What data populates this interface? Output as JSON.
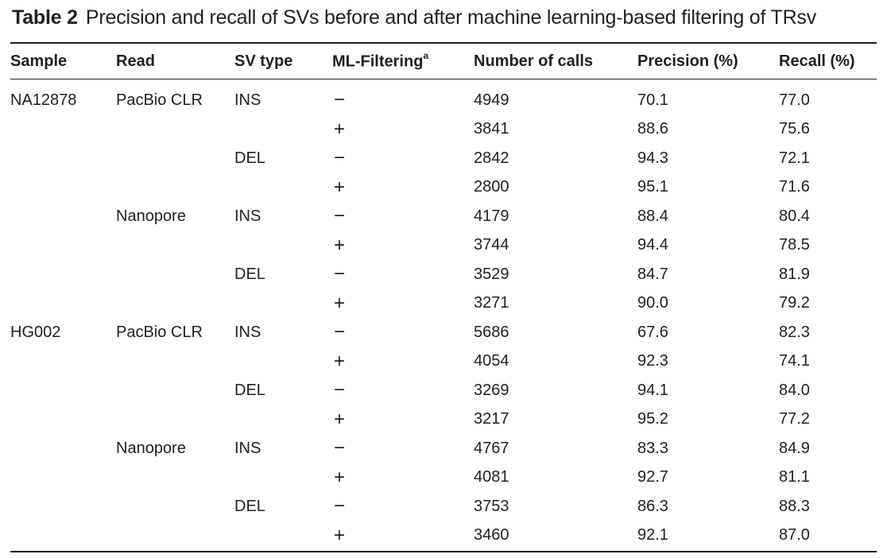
{
  "caption": {
    "label": "Table 2",
    "text": "Precision and recall of SVs before and after machine learning-based filtering of TRsv"
  },
  "table": {
    "headers": {
      "sample": "Sample",
      "read": "Read",
      "sv_type": "SV type",
      "ml_filtering": "ML-Filtering",
      "ml_filtering_footnote": "a",
      "number_of_calls": "Number of calls",
      "precision": "Precision (%)",
      "recall": "Recall (%)"
    },
    "rows": [
      {
        "sample": "NA12878",
        "read": "PacBio CLR",
        "sv_type": "INS",
        "ml": "−",
        "calls": "4949",
        "precision": "70.1",
        "recall": "77.0"
      },
      {
        "sample": "",
        "read": "",
        "sv_type": "",
        "ml": "+",
        "calls": "3841",
        "precision": "88.6",
        "recall": "75.6"
      },
      {
        "sample": "",
        "read": "",
        "sv_type": "DEL",
        "ml": "−",
        "calls": "2842",
        "precision": "94.3",
        "recall": "72.1"
      },
      {
        "sample": "",
        "read": "",
        "sv_type": "",
        "ml": "+",
        "calls": "2800",
        "precision": "95.1",
        "recall": "71.6"
      },
      {
        "sample": "",
        "read": "Nanopore",
        "sv_type": "INS",
        "ml": "−",
        "calls": "4179",
        "precision": "88.4",
        "recall": "80.4"
      },
      {
        "sample": "",
        "read": "",
        "sv_type": "",
        "ml": "+",
        "calls": "3744",
        "precision": "94.4",
        "recall": "78.5"
      },
      {
        "sample": "",
        "read": "",
        "sv_type": "DEL",
        "ml": "−",
        "calls": "3529",
        "precision": "84.7",
        "recall": "81.9"
      },
      {
        "sample": "",
        "read": "",
        "sv_type": "",
        "ml": "+",
        "calls": "3271",
        "precision": "90.0",
        "recall": "79.2"
      },
      {
        "sample": "HG002",
        "read": "PacBio CLR",
        "sv_type": "INS",
        "ml": "−",
        "calls": "5686",
        "precision": "67.6",
        "recall": "82.3"
      },
      {
        "sample": "",
        "read": "",
        "sv_type": "",
        "ml": "+",
        "calls": "4054",
        "precision": "92.3",
        "recall": "74.1"
      },
      {
        "sample": "",
        "read": "",
        "sv_type": "DEL",
        "ml": "−",
        "calls": "3269",
        "precision": "94.1",
        "recall": "84.0"
      },
      {
        "sample": "",
        "read": "",
        "sv_type": "",
        "ml": "+",
        "calls": "3217",
        "precision": "95.2",
        "recall": "77.2"
      },
      {
        "sample": "",
        "read": "Nanopore",
        "sv_type": "INS",
        "ml": "−",
        "calls": "4767",
        "precision": "83.3",
        "recall": "84.9"
      },
      {
        "sample": "",
        "read": "",
        "sv_type": "",
        "ml": "+",
        "calls": "4081",
        "precision": "92.7",
        "recall": "81.1"
      },
      {
        "sample": "",
        "read": "",
        "sv_type": "DEL",
        "ml": "−",
        "calls": "3753",
        "precision": "86.3",
        "recall": "88.3"
      },
      {
        "sample": "",
        "read": "",
        "sv_type": "",
        "ml": "+",
        "calls": "3460",
        "precision": "92.1",
        "recall": "87.0"
      }
    ]
  }
}
